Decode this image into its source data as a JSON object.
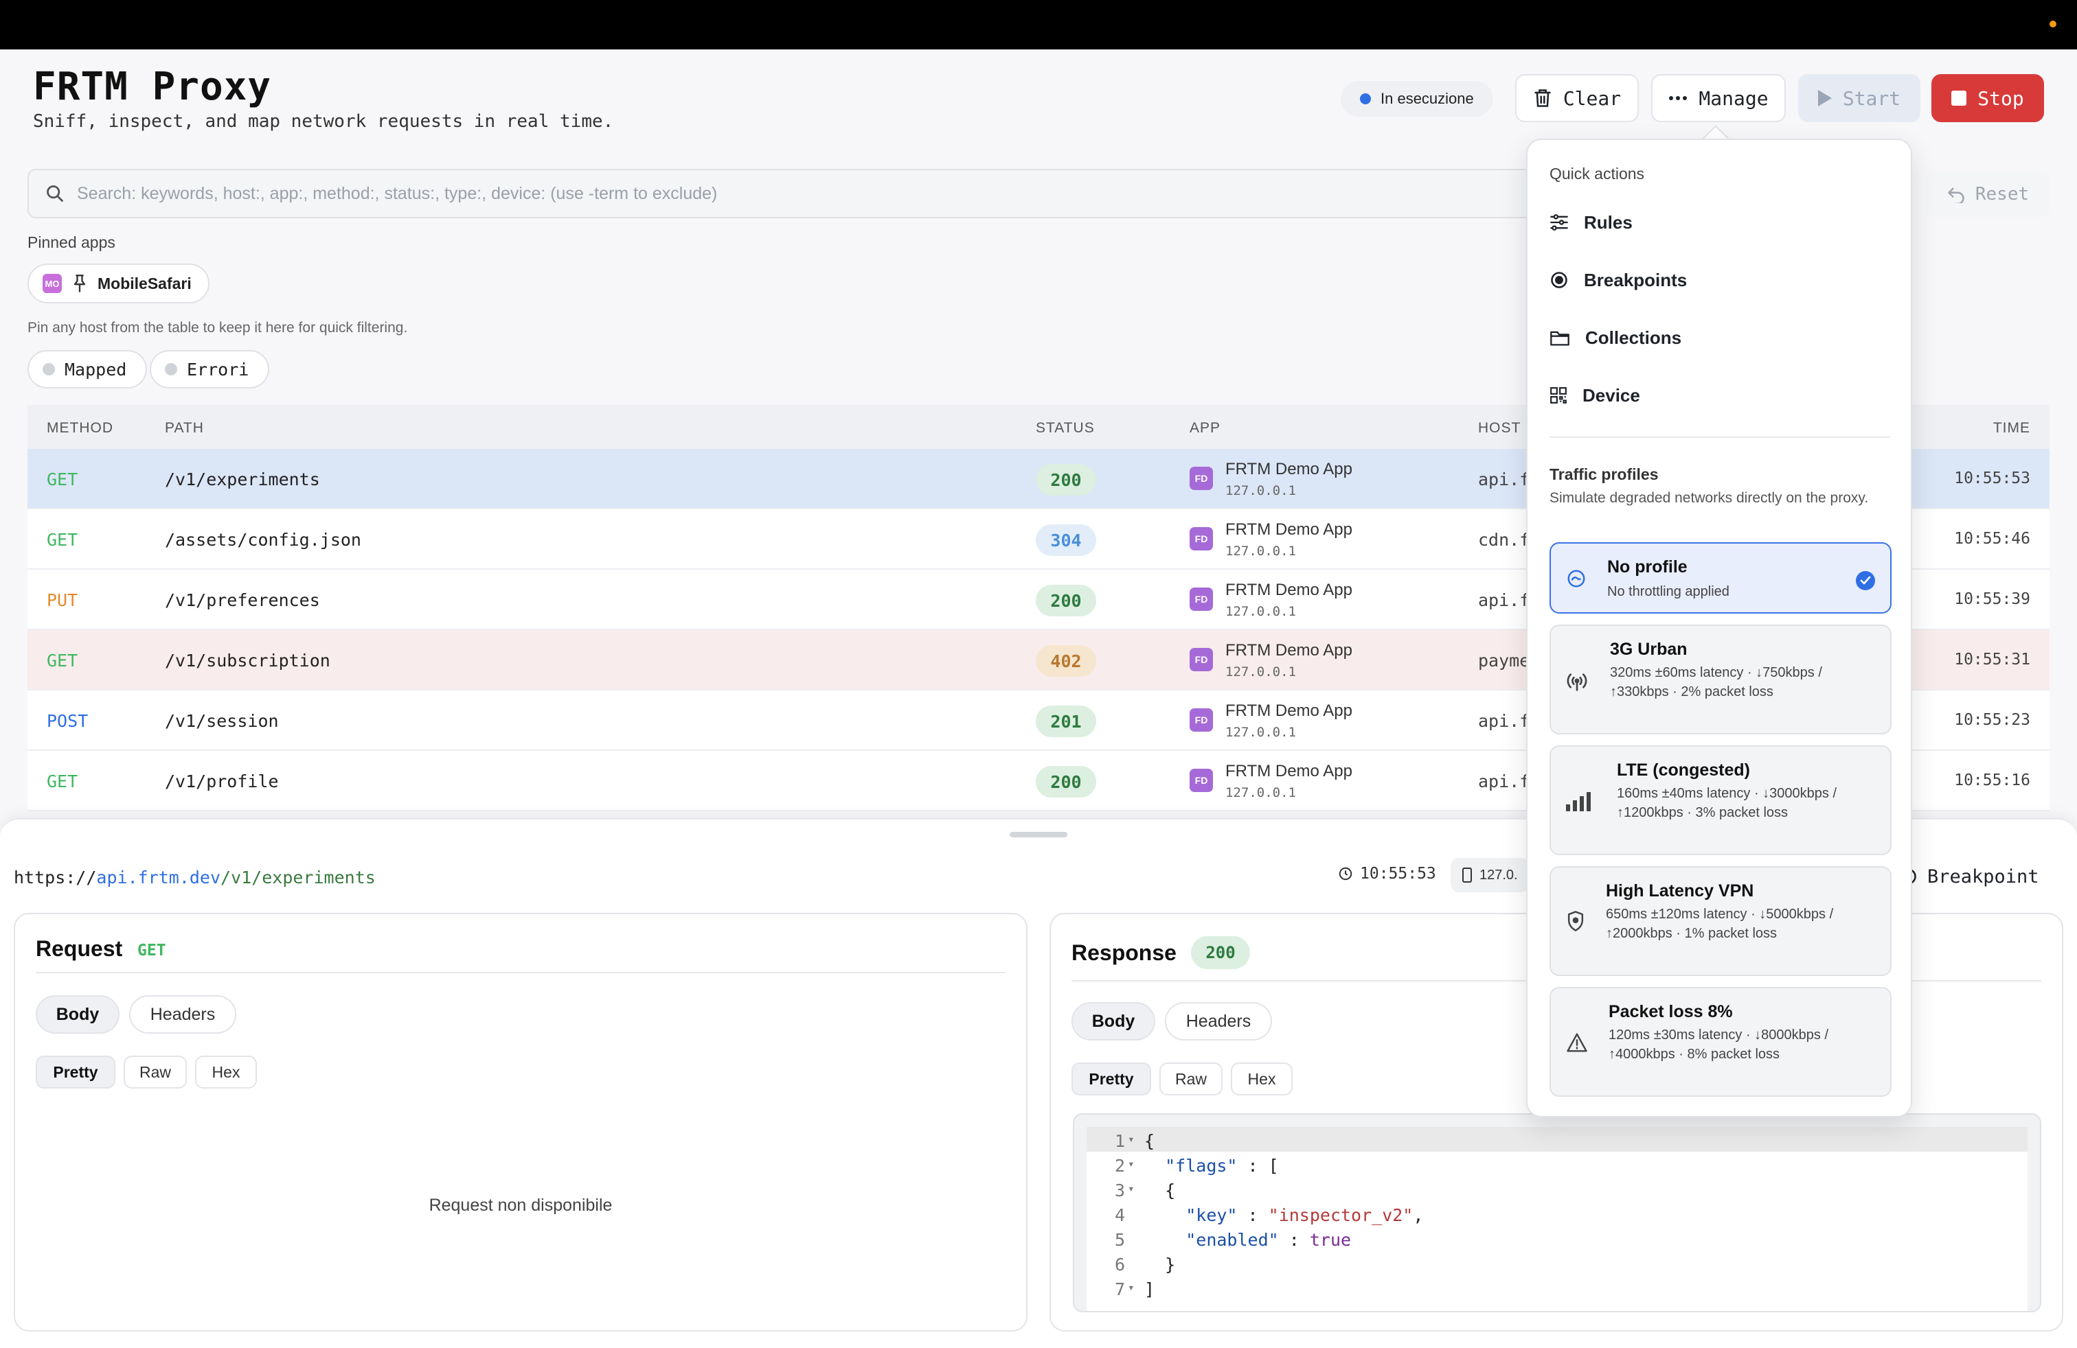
{
  "header": {
    "title": "FRTM Proxy",
    "subtitle": "Sniff, inspect, and map network requests in real time.",
    "status": "In esecuzione",
    "buttons": {
      "clear": "Clear",
      "manage": "Manage",
      "start": "Start",
      "stop": "Stop"
    }
  },
  "search": {
    "placeholder": "Search: keywords, host:, app:, method:, status:, type:, device: (use -term to exclude)",
    "reset": "Reset"
  },
  "pinned": {
    "label": "Pinned apps",
    "app": {
      "badge": "MO",
      "name": "MobileSafari"
    },
    "hint": "Pin any host from the table to keep it here for quick filtering."
  },
  "filters": [
    "Mapped",
    "Errori"
  ],
  "table": {
    "columns": {
      "method": "METHOD",
      "path": "PATH",
      "status": "STATUS",
      "app": "APP",
      "host": "HOST",
      "time": "TIME"
    },
    "rows": [
      {
        "method": "GET",
        "path": "/v1/experiments",
        "status": "200",
        "app_badge": "FD",
        "app": "FRTM Demo App",
        "ip": "127.0.0.1",
        "host": "api.f",
        "time": "10:55:53"
      },
      {
        "method": "GET",
        "path": "/assets/config.json",
        "status": "304",
        "app_badge": "FD",
        "app": "FRTM Demo App",
        "ip": "127.0.0.1",
        "host": "cdn.f",
        "time": "10:55:46"
      },
      {
        "method": "PUT",
        "path": "/v1/preferences",
        "status": "200",
        "app_badge": "FD",
        "app": "FRTM Demo App",
        "ip": "127.0.0.1",
        "host": "api.f",
        "time": "10:55:39"
      },
      {
        "method": "GET",
        "path": "/v1/subscription",
        "status": "402",
        "app_badge": "FD",
        "app": "FRTM Demo App",
        "ip": "127.0.0.1",
        "host": "payme",
        "time": "10:55:31"
      },
      {
        "method": "POST",
        "path": "/v1/session",
        "status": "201",
        "app_badge": "FD",
        "app": "FRTM Demo App",
        "ip": "127.0.0.1",
        "host": "api.f",
        "time": "10:55:23"
      },
      {
        "method": "GET",
        "path": "/v1/profile",
        "status": "200",
        "app_badge": "FD",
        "app": "FRTM Demo App",
        "ip": "127.0.0.1",
        "host": "api.f",
        "time": "10:55:16"
      }
    ]
  },
  "detail": {
    "url_scheme": "https://",
    "url_host": "api.frtm.dev",
    "url_path": "/v1/experiments",
    "time": "10:55:53",
    "ip": "127.0.",
    "breakpoint": "Breakpoint",
    "request": {
      "title": "Request",
      "method": "GET",
      "tabs": [
        "Body",
        "Headers"
      ],
      "views": [
        "Pretty",
        "Raw",
        "Hex"
      ],
      "empty": "Request non disponibile"
    },
    "response": {
      "title": "Response",
      "status": "200",
      "tabs": [
        "Body",
        "Headers"
      ],
      "views": [
        "Pretty",
        "Raw",
        "Hex"
      ],
      "code_lines": [
        "1",
        "2",
        "3",
        "4",
        "5",
        "6",
        "7"
      ],
      "code": {
        "l1": "{",
        "l2_key": "\"flags\"",
        "l2_rest": " : [",
        "l3": "  {",
        "l4_key": "\"key\"",
        "l4_sep": " : ",
        "l4_val": "\"inspector_v2\"",
        "l4_end": ",",
        "l5_key": "\"enabled\"",
        "l5_sep": " : ",
        "l5_val": "true",
        "l6": "  }",
        "l7": "]"
      }
    }
  },
  "manage_menu": {
    "quick_actions_label": "Quick actions",
    "items": [
      "Rules",
      "Breakpoints",
      "Collections",
      "Device"
    ],
    "traffic_label": "Traffic profiles",
    "traffic_desc": "Simulate degraded networks directly on the proxy.",
    "profiles": [
      {
        "name": "No profile",
        "detail": "No throttling applied",
        "icon": "speedometer-icon",
        "selected": true
      },
      {
        "name": "3G Urban",
        "detail": "320ms ±60ms latency · ↓750kbps / ↑330kbps · 2% packet loss",
        "icon": "antenna-icon"
      },
      {
        "name": "LTE (congested)",
        "detail": "160ms ±40ms latency · ↓3000kbps / ↑1200kbps · 3% packet loss",
        "icon": "signal-bars-icon"
      },
      {
        "name": "High Latency VPN",
        "detail": "650ms ±120ms latency · ↓5000kbps / ↑2000kbps · 1% packet loss",
        "icon": "shield-icon"
      },
      {
        "name": "Packet loss 8%",
        "detail": "120ms ±30ms latency · ↓8000kbps / ↑4000kbps · 8% packet loss",
        "icon": "warning-icon"
      }
    ]
  },
  "colors": {
    "accent": "#2f6fe4",
    "stop": "#d83a3a",
    "get": "#3fb85f",
    "put": "#e58a2b",
    "post": "#2f6fe4"
  }
}
